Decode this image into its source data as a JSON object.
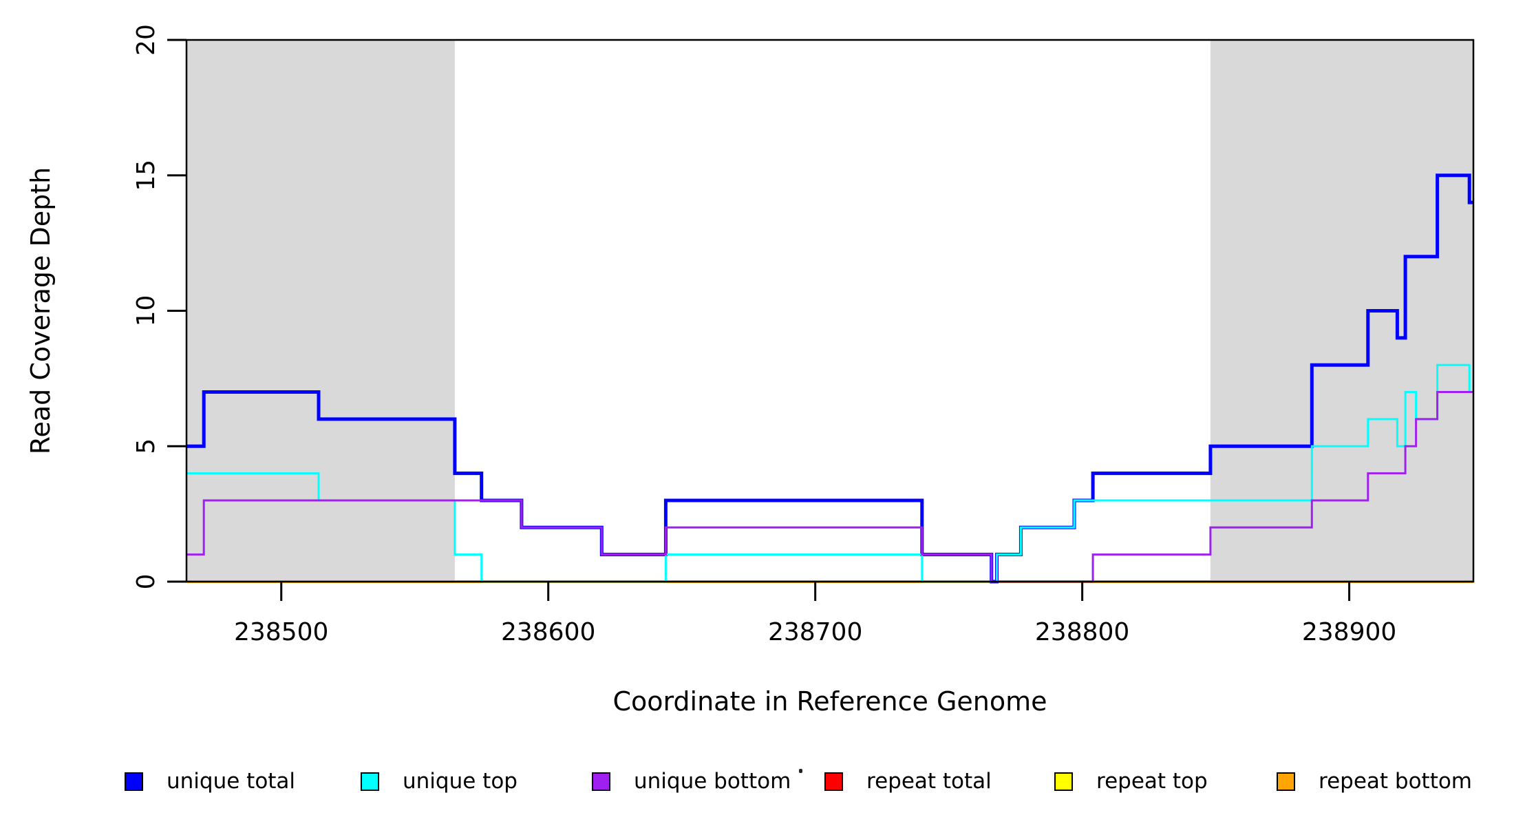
{
  "figure": {
    "background_color": "#FFFFFF",
    "xlabel": "Coordinate in Reference Genome",
    "ylabel": "Read Coverage Depth"
  },
  "chart_data": {
    "type": "line",
    "line_style": "step-after",
    "title": "",
    "xlabel": "Coordinate in Reference Genome",
    "ylabel": "Read Coverage Depth",
    "xlim": [
      238464.5,
      238946.5
    ],
    "ylim": [
      0,
      20
    ],
    "grid": false,
    "x_ticks": [
      238500,
      238600,
      238700,
      238800,
      238900
    ],
    "x_tick_labels": [
      "238500",
      "238600",
      "238700",
      "238800",
      "238900"
    ],
    "y_ticks": [
      0,
      5,
      10,
      15,
      20
    ],
    "y_tick_labels": [
      "0",
      "5",
      "10",
      "15",
      "20"
    ],
    "shaded_regions": [
      {
        "x_start": 238464.5,
        "x_end": 238565,
        "color": "#D9D9D9"
      },
      {
        "x_start": 238848,
        "x_end": 238946.5,
        "color": "#D9D9D9"
      }
    ],
    "series": [
      {
        "name": "repeat total",
        "color": "#FF0000",
        "line_width": 3,
        "steps": [
          [
            238464.5,
            0
          ],
          [
            238946.5,
            0
          ]
        ]
      },
      {
        "name": "repeat top",
        "color": "#FFFF00",
        "line_width": 3,
        "steps": [
          [
            238464.5,
            0
          ],
          [
            238946.5,
            0
          ]
        ]
      },
      {
        "name": "repeat bottom",
        "color": "#FFA500",
        "line_width": 4,
        "steps": [
          [
            238464.5,
            0
          ],
          [
            238946.5,
            0
          ]
        ]
      },
      {
        "name": "unique total",
        "color": "#0000FF",
        "line_width": 5,
        "steps": [
          [
            238464.5,
            5
          ],
          [
            238471,
            7
          ],
          [
            238514,
            6
          ],
          [
            238565,
            4
          ],
          [
            238575,
            3
          ],
          [
            238590,
            2
          ],
          [
            238620,
            1
          ],
          [
            238644,
            3
          ],
          [
            238740,
            1
          ],
          [
            238766,
            0
          ],
          [
            238768,
            1
          ],
          [
            238777,
            2
          ],
          [
            238797,
            3
          ],
          [
            238804,
            4
          ],
          [
            238848,
            5
          ],
          [
            238886,
            8
          ],
          [
            238907,
            10
          ],
          [
            238918,
            9
          ],
          [
            238921,
            12
          ],
          [
            238933,
            15
          ],
          [
            238945,
            14
          ],
          [
            238946.5,
            14
          ]
        ]
      },
      {
        "name": "unique top",
        "color": "#00FFFF",
        "line_width": 3,
        "steps": [
          [
            238464.5,
            4
          ],
          [
            238514,
            3
          ],
          [
            238565,
            1
          ],
          [
            238575,
            0
          ],
          [
            238644,
            1
          ],
          [
            238740,
            0
          ],
          [
            238768,
            1
          ],
          [
            238777,
            2
          ],
          [
            238797,
            3
          ],
          [
            238886,
            5
          ],
          [
            238907,
            6
          ],
          [
            238918,
            5
          ],
          [
            238921,
            7
          ],
          [
            238925,
            6
          ],
          [
            238933,
            8
          ],
          [
            238945,
            7
          ],
          [
            238946.5,
            7
          ]
        ]
      },
      {
        "name": "unique bottom",
        "color": "#A020F0",
        "line_width": 3,
        "steps": [
          [
            238464.5,
            1
          ],
          [
            238471,
            3
          ],
          [
            238590,
            2
          ],
          [
            238620,
            1
          ],
          [
            238644,
            2
          ],
          [
            238740,
            1
          ],
          [
            238766,
            0
          ],
          [
            238804,
            1
          ],
          [
            238848,
            2
          ],
          [
            238886,
            3
          ],
          [
            238907,
            4
          ],
          [
            238921,
            5
          ],
          [
            238925,
            6
          ],
          [
            238933,
            7
          ],
          [
            238946.5,
            7
          ]
        ]
      }
    ],
    "legend": {
      "position": "bottom",
      "entries": [
        {
          "label": "unique total",
          "color": "#0000FF"
        },
        {
          "label": "unique top",
          "color": "#00FFFF"
        },
        {
          "label": "unique bottom",
          "color": "#A020F0"
        },
        {
          "label": "repeat total",
          "color": "#FF0000"
        },
        {
          "label": "repeat top",
          "color": "#FFFF00"
        },
        {
          "label": "repeat bottom",
          "color": "#FFA500"
        }
      ]
    }
  }
}
